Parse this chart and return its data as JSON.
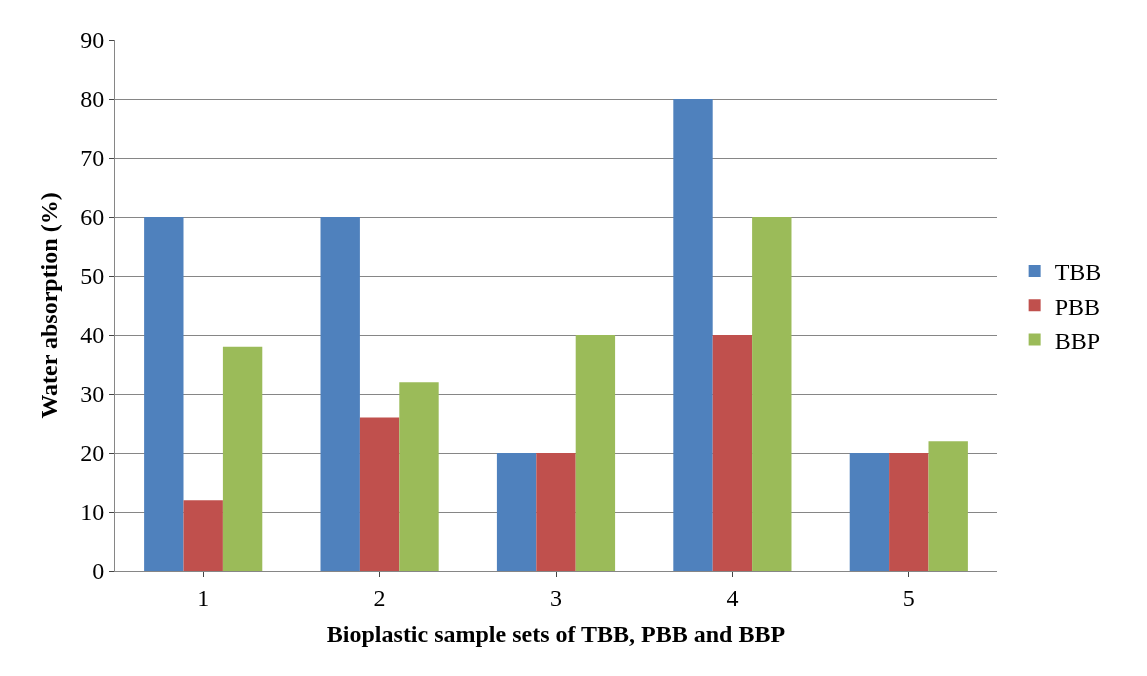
{
  "chart_data": {
    "type": "bar",
    "xlabel": "Bioplastic sample sets of TBB, PBB and BBP",
    "ylabel": "Water absorption (%)",
    "categories": [
      "1",
      "2",
      "3",
      "4",
      "5"
    ],
    "series": [
      {
        "name": "TBB",
        "color": "#4f81bd",
        "values": [
          60,
          60,
          20,
          80,
          20
        ]
      },
      {
        "name": "PBB",
        "color": "#c0504d",
        "values": [
          12,
          26,
          20,
          40,
          20
        ]
      },
      {
        "name": "BBP",
        "color": "#9bbb59",
        "values": [
          38,
          32,
          40,
          60,
          22
        ]
      }
    ],
    "ylim": [
      0,
      90
    ],
    "yticks": [
      0,
      10,
      20,
      30,
      40,
      50,
      60,
      70,
      80,
      90
    ],
    "grid": "y",
    "legend": "right"
  }
}
